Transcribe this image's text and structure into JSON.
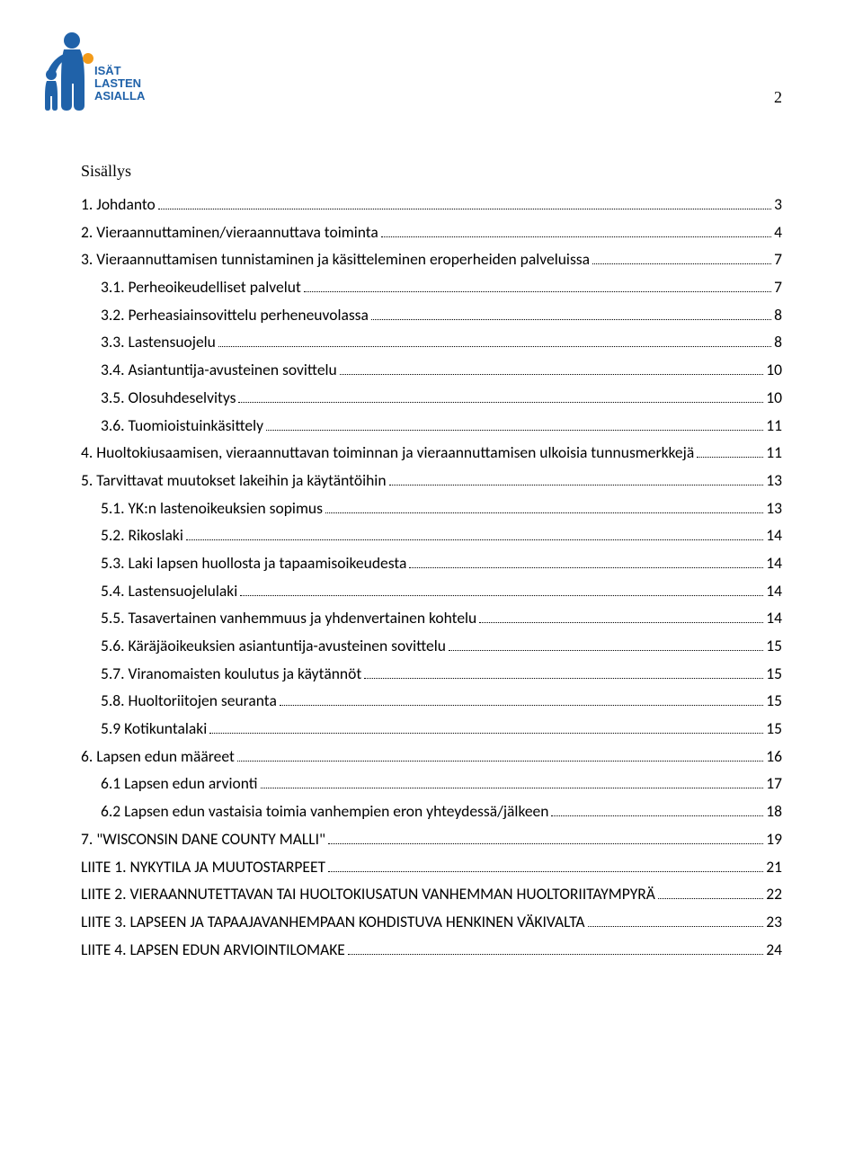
{
  "page_number": "2",
  "logo": {
    "text_lines": [
      "ISÄT",
      "LASTEN",
      "ASIALLA"
    ],
    "primary_color": "#2062a9",
    "accent_color": "#f39b1a"
  },
  "toc_title": "Sisällys",
  "colors": {
    "text": "#000000",
    "background": "#ffffff",
    "dot": "#000000"
  },
  "typography": {
    "body_font": "Calibri",
    "title_font": "Times New Roman",
    "body_size_pt": 13,
    "title_size_pt": 13
  },
  "toc": [
    {
      "level": 0,
      "label": "1. Johdanto",
      "page": "3"
    },
    {
      "level": 0,
      "label": "2. Vieraannuttaminen/vieraannuttava toiminta",
      "page": "4"
    },
    {
      "level": 0,
      "label": "3. Vieraannuttamisen tunnistaminen ja käsitteleminen eroperheiden palveluissa",
      "page": "7"
    },
    {
      "level": 1,
      "label": "3.1. Perheoikeudelliset palvelut",
      "page": "7"
    },
    {
      "level": 1,
      "label": "3.2. Perheasiainsovittelu perheneuvolassa",
      "page": "8"
    },
    {
      "level": 1,
      "label": "3.3. Lastensuojelu",
      "page": "8"
    },
    {
      "level": 1,
      "label": "3.4. Asiantuntija-avusteinen sovittelu",
      "page": " 10"
    },
    {
      "level": 1,
      "label": "3.5. Olosuhdeselvitys",
      "page": " 10"
    },
    {
      "level": 1,
      "label": "3.6. Tuomioistuinkäsittely",
      "page": " 11"
    },
    {
      "level": 0,
      "label": "4. Huoltokiusaamisen, vieraannuttavan toiminnan ja vieraannuttamisen ulkoisia tunnusmerkkejä",
      "page": "11"
    },
    {
      "level": 0,
      "label": "5. Tarvittavat muutokset lakeihin ja käytäntöihin",
      "page": "13"
    },
    {
      "level": 1,
      "label": "5.1. YK:n lastenoikeuksien sopimus",
      "page": " 13"
    },
    {
      "level": 1,
      "label": "5.2. Rikoslaki",
      "page": " 14"
    },
    {
      "level": 1,
      "label": "5.3. Laki lapsen huollosta ja tapaamisoikeudesta",
      "page": " 14"
    },
    {
      "level": 1,
      "label": "5.4. Lastensuojelulaki",
      "page": " 14"
    },
    {
      "level": 1,
      "label": "5.5. Tasavertainen vanhemmuus ja yhdenvertainen kohtelu",
      "page": " 14"
    },
    {
      "level": 1,
      "label": "5.6. Käräjäoikeuksien asiantuntija-avusteinen sovittelu",
      "page": " 15"
    },
    {
      "level": 1,
      "label": "5.7.  Viranomaisten koulutus ja käytännöt",
      "page": " 15"
    },
    {
      "level": 1,
      "label": "5.8. Huoltoriitojen seuranta",
      "page": " 15"
    },
    {
      "level": 1,
      "label": "5.9 Kotikuntalaki",
      "page": " 15"
    },
    {
      "level": 0,
      "label": "6. Lapsen edun määreet",
      "page": "16"
    },
    {
      "level": 1,
      "label": "6.1 Lapsen edun arvionti",
      "page": " 17"
    },
    {
      "level": 1,
      "label": "6.2 Lapsen edun vastaisia toimia vanhempien eron yhteydessä/jälkeen",
      "page": " 18"
    },
    {
      "level": 0,
      "label": "7. \"WISCONSIN DANE COUNTY MALLI\"",
      "page": "19"
    },
    {
      "level": 0,
      "label": "LIITE 1. NYKYTILA JA MUUTOSTARPEET",
      "page": "21"
    },
    {
      "level": 0,
      "label": "LIITE 2. VIERAANNUTETTAVAN TAI HUOLTOKIUSATUN VANHEMMAN HUOLTORIITAYMPYRÄ",
      "page": "22"
    },
    {
      "level": 0,
      "label": "LIITE 3. LAPSEEN JA TAPAAJAVANHEMPAAN KOHDISTUVA HENKINEN VÄKIVALTA",
      "page": "23"
    },
    {
      "level": 0,
      "label": "LIITE 4. LAPSEN EDUN ARVIOINTILOMAKE",
      "page": "24"
    }
  ]
}
